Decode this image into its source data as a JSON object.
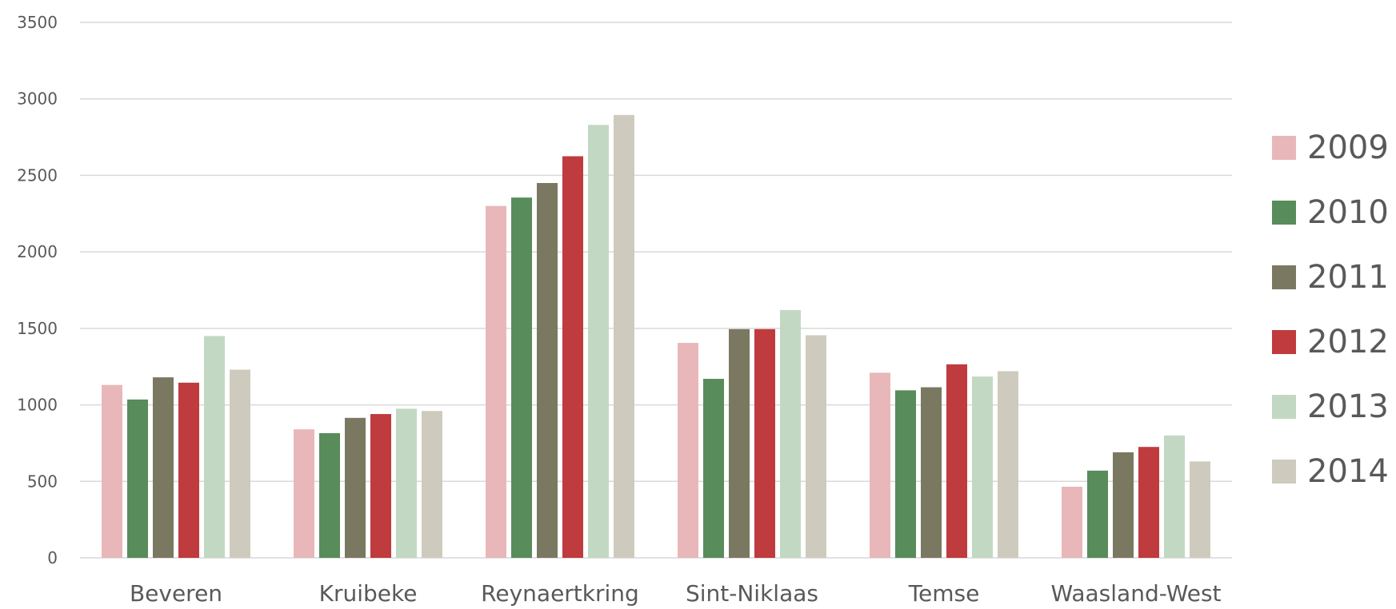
{
  "chart_data": {
    "type": "bar",
    "title": "",
    "xlabel": "",
    "ylabel": "",
    "categories": [
      "Beveren",
      "Kruibeke",
      "Reynaertkring",
      "Sint-Niklaas",
      "Temse",
      "Waasland-West"
    ],
    "ylim": [
      0,
      3500
    ],
    "yticks": [
      "0",
      "500",
      "1000",
      "1500",
      "2000",
      "2500",
      "3000",
      "3500"
    ],
    "grid": true,
    "legend_position": "right",
    "series": [
      {
        "name": "2009",
        "color": "#e8b7b9",
        "values": [
          1130,
          840,
          2300,
          1405,
          1210,
          465
        ]
      },
      {
        "name": "2010",
        "color": "#588c5a",
        "values": [
          1035,
          815,
          2355,
          1170,
          1095,
          570
        ]
      },
      {
        "name": "2011",
        "color": "#7b7862",
        "values": [
          1180,
          915,
          2450,
          1495,
          1115,
          690
        ]
      },
      {
        "name": "2012",
        "color": "#bf3b3e",
        "values": [
          1145,
          940,
          2625,
          1495,
          1265,
          725
        ]
      },
      {
        "name": "2013",
        "color": "#c2d8c2",
        "values": [
          1450,
          975,
          2830,
          1620,
          1185,
          800
        ]
      },
      {
        "name": "2014",
        "color": "#cecbbe",
        "values": [
          1230,
          960,
          2895,
          1455,
          1220,
          630
        ]
      }
    ]
  }
}
